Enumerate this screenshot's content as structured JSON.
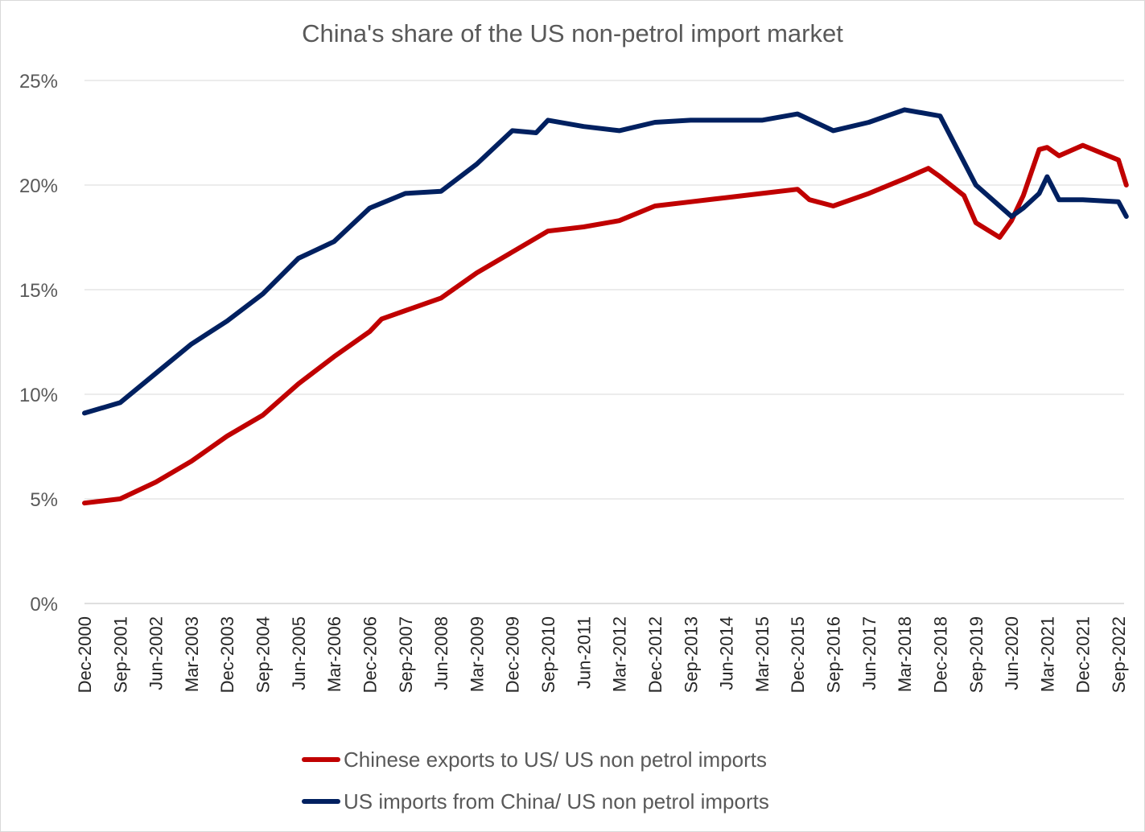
{
  "chart_data": {
    "type": "line",
    "title": "China's share of the US non-petrol import market",
    "xlabel": "",
    "ylabel": "",
    "ylim": [
      0,
      25
    ],
    "yticks": [
      "0%",
      "5%",
      "10%",
      "15%",
      "20%",
      "25%"
    ],
    "xticks": [
      "Dec-2000",
      "Sep-2001",
      "Jun-2002",
      "Mar-2003",
      "Dec-2003",
      "Sep-2004",
      "Jun-2005",
      "Mar-2006",
      "Dec-2006",
      "Sep-2007",
      "Jun-2008",
      "Mar-2009",
      "Dec-2009",
      "Sep-2010",
      "Jun-2011",
      "Mar-2012",
      "Dec-2012",
      "Sep-2013",
      "Jun-2014",
      "Mar-2015",
      "Dec-2015",
      "Sep-2016",
      "Jun-2017",
      "Mar-2018",
      "Dec-2018",
      "Sep-2019",
      "Jun-2020",
      "Mar-2021",
      "Dec-2021",
      "Sep-2022"
    ],
    "grid": true,
    "legend_position": "bottom",
    "series": [
      {
        "name": "Chinese exports to US/ US non petrol imports",
        "color": "#c00000",
        "x": [
          "Dec-2000",
          "Sep-2001",
          "Jun-2002",
          "Mar-2003",
          "Dec-2003",
          "Sep-2004",
          "Jun-2005",
          "Mar-2006",
          "Dec-2006",
          "Mar-2007",
          "Sep-2007",
          "Jun-2008",
          "Mar-2009",
          "Dec-2009",
          "Sep-2010",
          "Jun-2011",
          "Mar-2012",
          "Dec-2012",
          "Sep-2013",
          "Jun-2014",
          "Mar-2015",
          "Dec-2015",
          "Mar-2016",
          "Sep-2016",
          "Jun-2017",
          "Mar-2018",
          "Sep-2018",
          "Dec-2018",
          "Jun-2019",
          "Sep-2019",
          "Mar-2020",
          "Jun-2020",
          "Sep-2020",
          "Jan-2021",
          "Mar-2021",
          "Jun-2021",
          "Dec-2021",
          "Sep-2022",
          "Nov-2022"
        ],
        "y": [
          4.8,
          5.0,
          5.8,
          6.8,
          8.0,
          9.0,
          10.5,
          11.8,
          13.0,
          13.6,
          14.0,
          14.6,
          15.8,
          16.8,
          17.8,
          18.0,
          18.3,
          19.0,
          19.2,
          19.4,
          19.6,
          19.8,
          19.3,
          19.0,
          19.6,
          20.3,
          20.8,
          20.4,
          19.5,
          18.2,
          17.5,
          18.3,
          19.5,
          21.7,
          21.8,
          21.4,
          21.9,
          21.2,
          20.0
        ]
      },
      {
        "name": "US imports from China/ US non petrol imports",
        "color": "#002060",
        "x": [
          "Dec-2000",
          "Sep-2001",
          "Jun-2002",
          "Mar-2003",
          "Dec-2003",
          "Sep-2004",
          "Jun-2005",
          "Mar-2006",
          "Dec-2006",
          "Sep-2007",
          "Jun-2008",
          "Mar-2009",
          "Dec-2009",
          "Jun-2010",
          "Sep-2010",
          "Jun-2011",
          "Mar-2012",
          "Dec-2012",
          "Sep-2013",
          "Jun-2014",
          "Mar-2015",
          "Dec-2015",
          "Sep-2016",
          "Jun-2017",
          "Mar-2018",
          "Dec-2018",
          "Sep-2019",
          "Jun-2020",
          "Sep-2020",
          "Jan-2021",
          "Mar-2021",
          "Jun-2021",
          "Dec-2021",
          "Sep-2022",
          "Nov-2022"
        ],
        "y": [
          9.1,
          9.6,
          11.0,
          12.4,
          13.5,
          14.8,
          16.5,
          17.3,
          18.9,
          19.6,
          19.7,
          21.0,
          22.6,
          22.5,
          23.1,
          22.8,
          22.6,
          23.0,
          23.1,
          23.1,
          23.1,
          23.4,
          22.6,
          23.0,
          23.6,
          23.3,
          20.0,
          18.5,
          18.9,
          19.6,
          20.4,
          19.3,
          19.3,
          19.2,
          18.5
        ]
      }
    ]
  }
}
